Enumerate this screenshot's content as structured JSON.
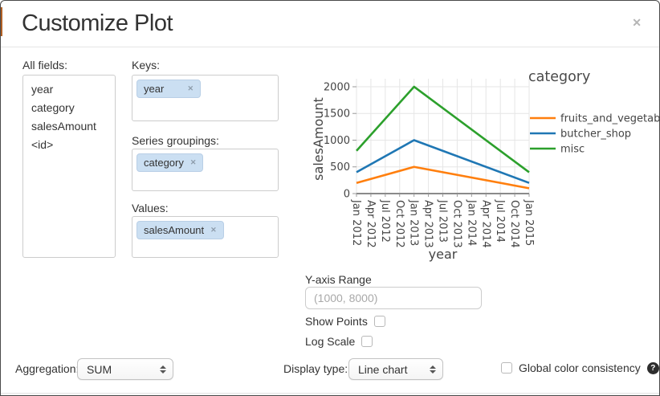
{
  "dialog": {
    "title": "Customize Plot"
  },
  "glyphs": {
    "close": "✕",
    "remove_tag": "✕",
    "help": "?"
  },
  "panels": {
    "all_fields": {
      "label": "All fields:",
      "items": [
        "year",
        "category",
        "salesAmount",
        "<id>"
      ]
    },
    "keys": {
      "label": "Keys:",
      "tags": [
        "year"
      ]
    },
    "series_groupings": {
      "label": "Series groupings:",
      "tags": [
        "category"
      ]
    },
    "values": {
      "label": "Values:",
      "tags": [
        "salesAmount"
      ]
    }
  },
  "controls": {
    "y_axis_range": {
      "label": "Y-axis Range",
      "placeholder": "(1000, 8000)",
      "value": ""
    },
    "show_points": {
      "label": "Show Points",
      "checked": false
    },
    "log_scale": {
      "label": "Log Scale",
      "checked": false
    },
    "aggregation": {
      "label": "Aggregation:",
      "value": "SUM"
    },
    "display_type": {
      "label": "Display type:",
      "value": "Line chart"
    },
    "global_color_consistency": {
      "label": "Global color consistency",
      "checked": false
    }
  },
  "chart_data": {
    "type": "line",
    "xlabel": "year",
    "ylabel": "salesAmount",
    "legend_title": "category",
    "legend_position": "right",
    "grid": true,
    "x_ticks": [
      "Jan 2012",
      "Apr 2012",
      "Jul 2012",
      "Oct 2012",
      "Jan 2013",
      "Apr 2013",
      "Jul 2013",
      "Oct 2013",
      "Jan 2014",
      "Apr 2014",
      "Jul 2014",
      "Oct 2014",
      "Jan 2015"
    ],
    "y_ticks": [
      0,
      500,
      1000,
      1500,
      2000
    ],
    "ylim": [
      0,
      2150
    ],
    "series": [
      {
        "name": "fruits_and_vegetables",
        "color": "#ff7f0e",
        "x": [
          "Jan 2012",
          "Jan 2013",
          "Jan 2015"
        ],
        "values": [
          200,
          500,
          100
        ]
      },
      {
        "name": "butcher_shop",
        "color": "#1f77b4",
        "x": [
          "Jan 2012",
          "Jan 2013",
          "Jan 2015"
        ],
        "values": [
          400,
          1000,
          200
        ]
      },
      {
        "name": "misc",
        "color": "#2ca02c",
        "x": [
          "Jan 2012",
          "Jan 2013",
          "Jan 2015"
        ],
        "values": [
          800,
          2000,
          400
        ]
      }
    ]
  }
}
